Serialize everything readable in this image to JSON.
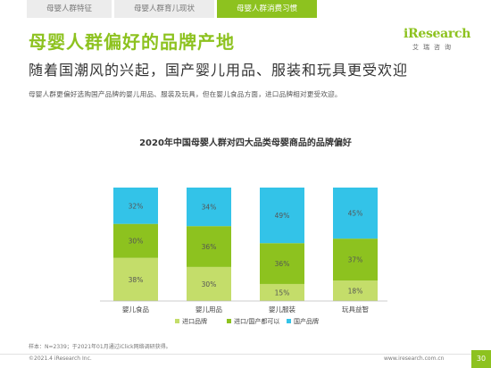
{
  "tabs": [
    {
      "label": "母婴人群特征"
    },
    {
      "label": "母婴人群育儿现状"
    },
    {
      "label": "母婴人群消费习惯"
    }
  ],
  "logo": {
    "brand": "iResearch",
    "sub": "艾瑞咨询"
  },
  "heading": "母婴人群偏好的品牌产地",
  "subheading": "随着国潮风的兴起，国产婴儿用品、服装和玩具更受欢迎",
  "description": "母婴人群更偏好选购国产品牌的婴儿用品、服装及玩具，但在婴儿食品方面，进口品牌相对更受欢迎。",
  "note": "样本：N=2339；于2021年01月通过iClick网络调研获得。",
  "copyright": "©2021.4 iResearch Inc.",
  "website": "www.iresearch.com.cn",
  "page_number": "30",
  "colors": {
    "accent": "#8dc21f",
    "import": "#8dc21f",
    "either": "#c4dd6a",
    "domestic": "#33c3e8"
  },
  "chart_data": {
    "type": "bar",
    "stacked": true,
    "title": "2020年中国母婴人群对四大品类母婴商品的品牌偏好",
    "categories": [
      "婴儿食品",
      "婴儿用品",
      "婴儿服装",
      "玩具益智"
    ],
    "series": [
      {
        "name": "进口品牌",
        "values": [
          38,
          30,
          15,
          18
        ],
        "labels": [
          "38%",
          "30%",
          "15%",
          "18%"
        ],
        "color": "#c4dd6a"
      },
      {
        "name": "进口/国产都可以",
        "values": [
          30,
          36,
          36,
          37
        ],
        "labels": [
          "30%",
          "36%",
          "36%",
          "37%"
        ],
        "color": "#8dc21f"
      },
      {
        "name": "国产品牌",
        "values": [
          32,
          34,
          49,
          45
        ],
        "labels": [
          "32%",
          "34%",
          "49%",
          "45%"
        ],
        "color": "#33c3e8"
      }
    ],
    "ylim": [
      0,
      100
    ],
    "legend": "bottom"
  }
}
